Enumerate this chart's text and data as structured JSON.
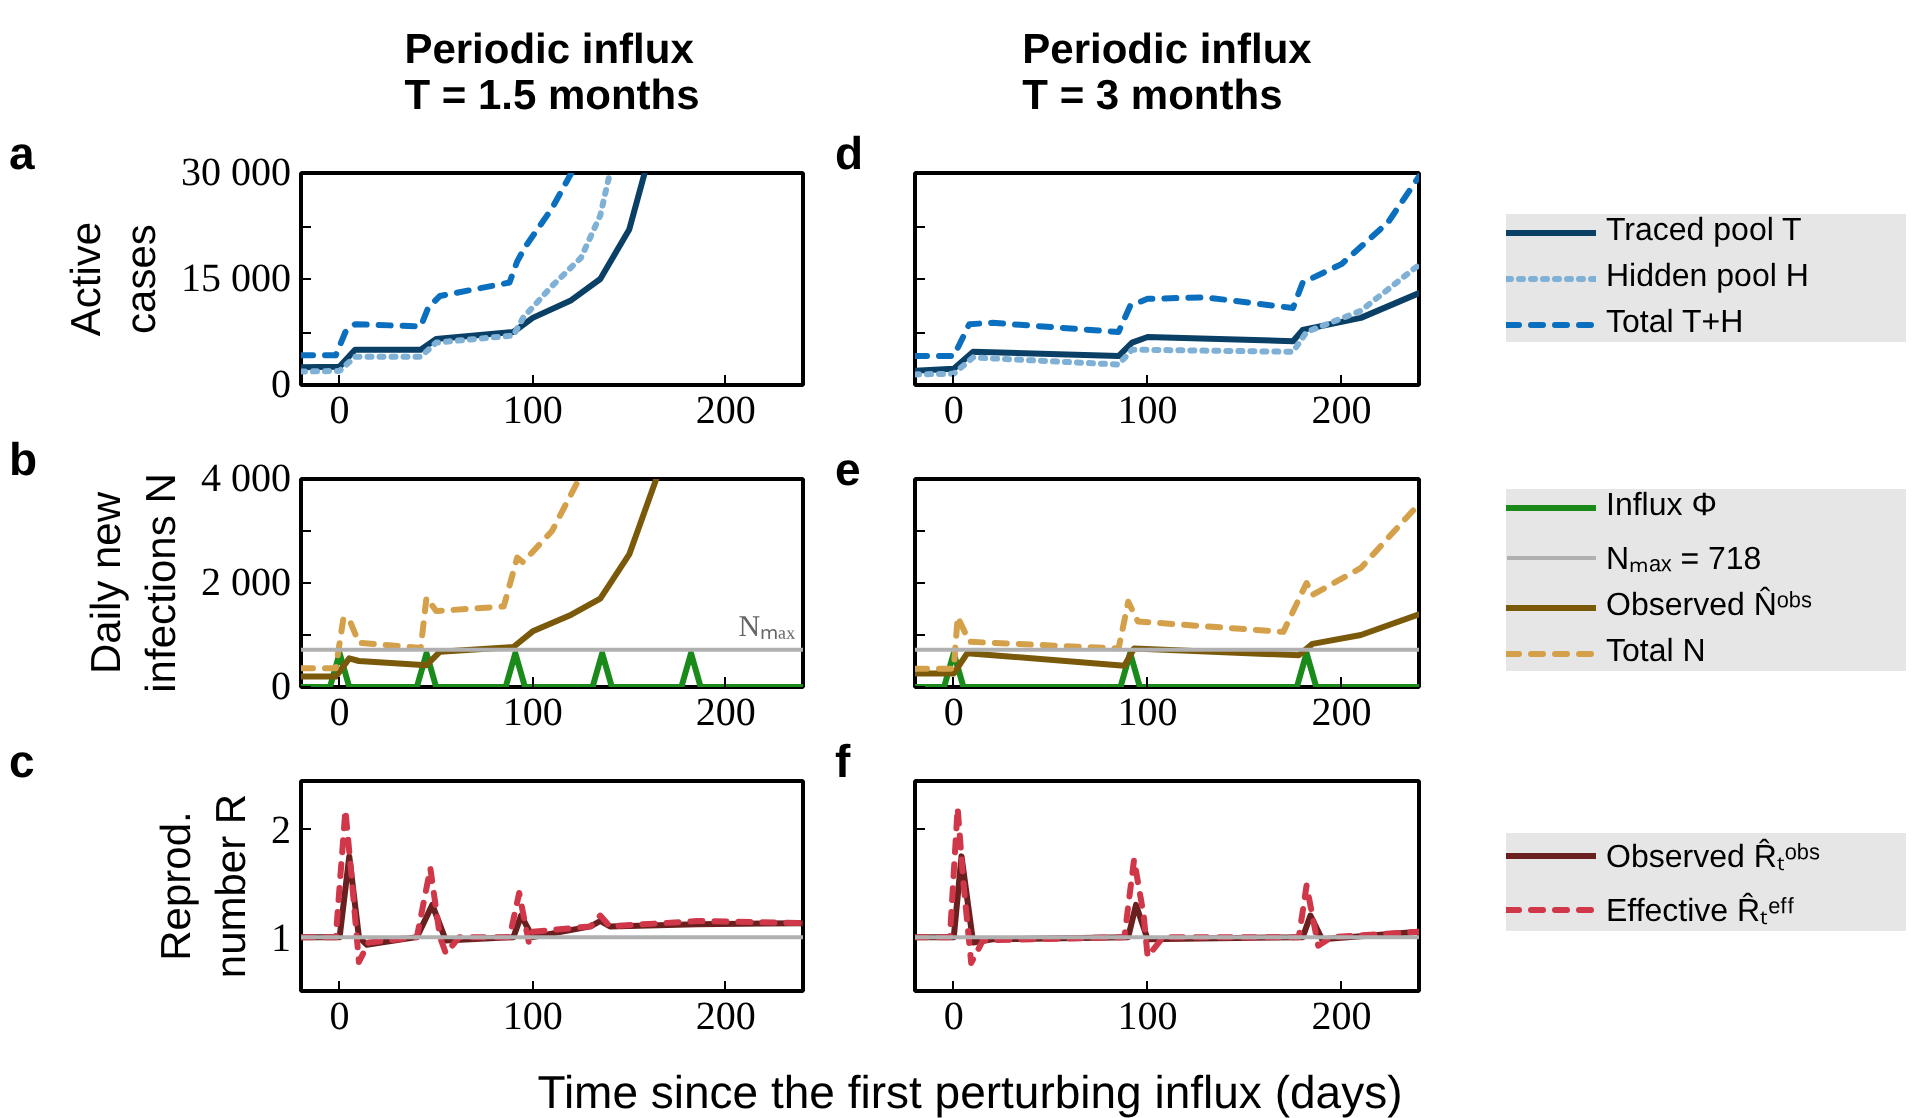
{
  "chart_data": [
    {
      "type": "line",
      "title": "Periodic influx T = 1.5 months",
      "ylabel": "Active cases",
      "annotations": [
        "a"
      ],
      "xlim": [
        -20,
        240
      ],
      "xticks": [
        0,
        100,
        200
      ],
      "ylim": [
        0,
        30000
      ],
      "yticks": [
        {
          "value": 0,
          "label": "0"
        },
        {
          "value": 7500,
          "label": null
        },
        {
          "value": 15000,
          "label": "15 000"
        },
        {
          "value": 22500,
          "label": null
        },
        {
          "value": 30000,
          "label": "30 000"
        }
      ],
      "series": [
        {
          "color": "#0a3f66",
          "line_style": "solid",
          "x": [
            -20,
            0,
            8,
            42,
            50,
            90,
            100,
            120,
            135,
            150,
            158
          ],
          "values": [
            2500,
            2600,
            5000,
            5000,
            6500,
            7500,
            9500,
            12000,
            15000,
            22000,
            30000
          ]
        },
        {
          "color": "#7fb0d6",
          "line_style": "dotted",
          "x": [
            -20,
            0,
            8,
            42,
            50,
            90,
            95,
            110,
            125,
            135,
            140
          ],
          "values": [
            1900,
            2000,
            4000,
            4000,
            6000,
            7000,
            9500,
            14000,
            18000,
            24000,
            30000
          ]
        },
        {
          "color": "#0a6fbf",
          "line_style": "dashed",
          "x": [
            -20,
            -2,
            3,
            8,
            42,
            46,
            52,
            88,
            92,
            96,
            110,
            120
          ],
          "values": [
            4200,
            4200,
            7500,
            8600,
            8300,
            11000,
            12600,
            14500,
            17500,
            19500,
            25000,
            30000
          ]
        }
      ]
    },
    {
      "type": "line",
      "title": "Periodic influx T = 3 months",
      "annotations": [
        "d"
      ],
      "legend": "right",
      "tick_labels": "x",
      "xlim": [
        -20,
        240
      ],
      "xticks": [
        0,
        100,
        200
      ],
      "ylim": [
        0,
        30000
      ],
      "yticks": [
        {
          "value": 0,
          "label": null
        },
        {
          "value": 7500,
          "label": null
        },
        {
          "value": 15000,
          "label": null
        },
        {
          "value": 22500,
          "label": null
        },
        {
          "value": 30000,
          "label": null
        }
      ],
      "series": [
        {
          "name": "Traced pool T",
          "color": "#0a3f66",
          "line_style": "solid",
          "x": [
            -20,
            0,
            10,
            85,
            92,
            100,
            175,
            180,
            210,
            240
          ],
          "values": [
            2000,
            2300,
            4700,
            4100,
            6000,
            6800,
            6200,
            7800,
            9500,
            13000
          ]
        },
        {
          "name": "Hidden pool H",
          "color": "#7fb0d6",
          "line_style": "dotted",
          "x": [
            -20,
            0,
            10,
            85,
            92,
            175,
            182,
            210,
            240
          ],
          "values": [
            1500,
            1600,
            3900,
            2900,
            5000,
            4700,
            7500,
            10500,
            17000
          ]
        },
        {
          "name": "Total T+H",
          "color": "#0a6fbf",
          "line_style": "dashed",
          "x": [
            -20,
            0,
            8,
            20,
            85,
            91,
            100,
            130,
            175,
            180,
            200,
            224,
            240
          ],
          "values": [
            4100,
            4100,
            8600,
            8800,
            7500,
            11200,
            12200,
            12400,
            10900,
            14500,
            17100,
            23000,
            29500
          ]
        }
      ]
    },
    {
      "type": "line",
      "ylabel": "Daily new infections N",
      "annotations": [
        "b"
      ],
      "xlim": [
        -20,
        240
      ],
      "xticks": [
        0,
        100,
        200
      ],
      "ylim": [
        0,
        4000
      ],
      "yticks": [
        {
          "value": 0,
          "label": "0"
        },
        {
          "value": 1000,
          "label": null
        },
        {
          "value": 2000,
          "label": "2 000"
        },
        {
          "value": 3000,
          "label": null
        },
        {
          "value": 4000,
          "label": "4 000"
        }
      ],
      "ref_lines": [
        {
          "axis": "y",
          "value": 718,
          "label": "Nₘₐₓ",
          "color": "#b0b0b0"
        }
      ],
      "series": [
        {
          "color": "#1a8a1a",
          "line_style": "solid",
          "x": [
            -20,
            -5,
            0,
            5,
            40,
            45,
            50,
            86,
            91,
            96,
            131,
            136,
            141,
            177,
            182,
            187,
            240
          ],
          "values": [
            0,
            0,
            650,
            0,
            0,
            650,
            0,
            0,
            650,
            0,
            0,
            650,
            0,
            0,
            650,
            0,
            0
          ]
        },
        {
          "color": "#7a5a0a",
          "line_style": "solid",
          "x": [
            -20,
            -2,
            5,
            10,
            45,
            52,
            90,
            100,
            120,
            135,
            150,
            164
          ],
          "values": [
            200,
            200,
            550,
            500,
            420,
            680,
            770,
            1070,
            1390,
            1700,
            2550,
            4000
          ]
        },
        {
          "color": "#d4a04a",
          "line_style": "dashed",
          "x": [
            -20,
            -2,
            2,
            5,
            10,
            42,
            45,
            50,
            85,
            92,
            95,
            110,
            124
          ],
          "values": [
            360,
            360,
            1330,
            1300,
            850,
            750,
            1720,
            1460,
            1550,
            2490,
            2400,
            3000,
            4000
          ]
        }
      ]
    },
    {
      "type": "line",
      "annotations": [
        "e"
      ],
      "legend": "right",
      "tick_labels": "x",
      "xlim": [
        -20,
        240
      ],
      "xticks": [
        0,
        100,
        200
      ],
      "ylim": [
        0,
        4000
      ],
      "yticks": [
        {
          "value": 0,
          "label": null
        },
        {
          "value": 1000,
          "label": null
        },
        {
          "value": 2000,
          "label": null
        },
        {
          "value": 3000,
          "label": null
        },
        {
          "value": 4000,
          "label": null
        }
      ],
      "ref_lines": [
        {
          "axis": "y",
          "value": 718,
          "label": "Nₘₐₓ = 718",
          "color": "#b0b0b0"
        }
      ],
      "series": [
        {
          "name": "Influx Φ",
          "color": "#1a8a1a",
          "line_style": "solid",
          "x": [
            -20,
            -5,
            0,
            5,
            86,
            91,
            96,
            177,
            182,
            187,
            240
          ],
          "values": [
            0,
            0,
            650,
            0,
            0,
            650,
            0,
            0,
            650,
            0,
            0
          ]
        },
        {
          "name": "Observed N̂ᵒᵇˢ",
          "color": "#7a5a0a",
          "line_style": "solid",
          "x": [
            -20,
            0,
            7,
            88,
            93,
            178,
            185,
            210,
            240
          ],
          "values": [
            260,
            260,
            650,
            410,
            740,
            610,
            830,
            1000,
            1400
          ]
        },
        {
          "name": "Total N",
          "color": "#d4a04a",
          "line_style": "dashed",
          "x": [
            -20,
            0,
            2,
            8,
            85,
            90,
            95,
            170,
            182,
            185,
            210,
            240
          ],
          "values": [
            350,
            350,
            1350,
            870,
            740,
            1640,
            1260,
            1060,
            2000,
            1770,
            2290,
            3520
          ]
        }
      ]
    },
    {
      "type": "line",
      "ylabel": "Reprod. number R",
      "xlabel": "Time since the first perturbing influx (days)",
      "annotations": [
        "c"
      ],
      "xlim": [
        -20,
        240
      ],
      "xticks": [
        0,
        100,
        200
      ],
      "ylim": [
        0.5,
        2.45
      ],
      "yticks": [
        1,
        2
      ],
      "ref_lines": [
        {
          "axis": "y",
          "value": 1,
          "color": "#b0b0b0"
        }
      ],
      "series": [
        {
          "color": "#6b2020",
          "line_style": "solid",
          "x": [
            -20,
            0,
            5,
            10,
            14,
            40,
            48,
            55,
            90,
            94,
            100,
            130,
            135,
            140,
            185,
            240
          ],
          "values": [
            1.0,
            1.0,
            1.75,
            1.0,
            0.93,
            1.0,
            1.3,
            0.97,
            1.0,
            1.2,
            1.0,
            1.1,
            1.15,
            1.1,
            1.12,
            1.13
          ]
        },
        {
          "color": "#d0384a",
          "line_style": "dashed",
          "x": [
            -20,
            -2,
            3,
            6,
            10,
            15,
            40,
            47,
            52,
            55,
            62,
            88,
            93,
            98,
            100,
            130,
            135,
            140,
            185,
            240
          ],
          "values": [
            1.0,
            1.0,
            2.18,
            1.6,
            0.77,
            0.95,
            1.0,
            1.64,
            1.0,
            0.85,
            1.0,
            1.0,
            1.41,
            0.95,
            1.05,
            1.1,
            1.2,
            1.1,
            1.15,
            1.13
          ]
        }
      ]
    },
    {
      "type": "line",
      "annotations": [
        "f"
      ],
      "legend": "right",
      "tick_labels": "x",
      "xlim": [
        -20,
        240
      ],
      "xticks": [
        0,
        100,
        200
      ],
      "ylim": [
        0.5,
        2.45
      ],
      "yticks": [
        {
          "value": 1,
          "label": null
        },
        {
          "value": 2,
          "label": null
        }
      ],
      "ref_lines": [
        {
          "axis": "y",
          "value": 1,
          "color": "#b0b0b0"
        }
      ],
      "series": [
        {
          "name": "Observed R̂ₜᵒᵇˢ",
          "color": "#6b2020",
          "line_style": "solid",
          "x": [
            -20,
            0,
            4,
            10,
            20,
            90,
            94,
            100,
            180,
            184,
            190,
            240
          ],
          "values": [
            1.0,
            1.0,
            1.75,
            0.95,
            0.98,
            1.0,
            1.3,
            0.98,
            1.0,
            1.2,
            0.98,
            1.05
          ]
        },
        {
          "name": "Effective R̂ₜᵉᶠᶠ",
          "color": "#d0384a",
          "line_style": "dashed",
          "x": [
            -20,
            -2,
            2,
            5,
            9,
            15,
            88,
            93,
            98,
            100,
            108,
            178,
            182,
            188,
            195,
            240
          ],
          "values": [
            1.0,
            1.0,
            2.2,
            1.5,
            0.76,
            0.97,
            1.0,
            1.72,
            1.2,
            0.82,
            1.0,
            1.0,
            1.48,
            0.92,
            1.0,
            1.05
          ]
        }
      ]
    }
  ]
}
